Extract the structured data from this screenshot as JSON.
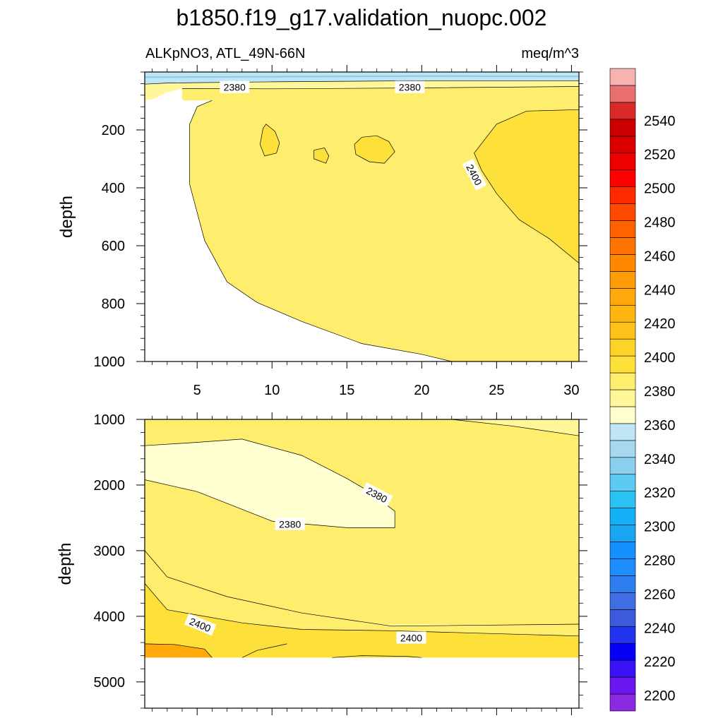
{
  "title": "b1850.f19_g17.validation_nuopc.002",
  "subtitle_left": "ALKpNO3, ATL_49N-66N",
  "subtitle_right": "meq/m^3",
  "colors": {
    "lev2370": "#ffffd0",
    "lev2380": "#fff79a",
    "lev2390": "#ffee6e",
    "lev2400": "#fde03a",
    "lev2420": "#ffa90c",
    "ocean_fill": "#bfe6f5",
    "ocean_fill_light": "#a9dcf0",
    "line": "#000000"
  },
  "chart_data": [
    {
      "type": "contour",
      "name": "upper-panel",
      "ylabel": "depth",
      "xlim": [
        1.5,
        30.5
      ],
      "ylim": [
        1000,
        0
      ],
      "x_ticks": [
        5,
        10,
        15,
        20,
        25,
        30
      ],
      "y_ticks": [
        200,
        400,
        600,
        800,
        1000
      ],
      "contour_labels": [
        {
          "text": "2380",
          "x": 7.5,
          "y": 53,
          "rotate": 0
        },
        {
          "text": "2380",
          "x": 19.2,
          "y": 53,
          "rotate": 0
        },
        {
          "text": "2400",
          "x": 23.5,
          "y": 355,
          "rotate": 62
        }
      ],
      "regions": [
        {
          "level": "ocean_fill",
          "points": [
            [
              1.5,
              0
            ],
            [
              30.5,
              0
            ],
            [
              30.5,
              30
            ],
            [
              20,
              30
            ],
            [
              10,
              34
            ],
            [
              3,
              38
            ],
            [
              1.5,
              42
            ]
          ]
        },
        {
          "level": "lev2380",
          "points": [
            [
              1.5,
              42
            ],
            [
              3,
              38
            ],
            [
              10,
              34
            ],
            [
              20,
              30
            ],
            [
              30.5,
              30
            ],
            [
              30.5,
              50
            ],
            [
              20,
              55
            ],
            [
              10,
              58
            ],
            [
              4,
              57
            ],
            [
              3,
              70
            ],
            [
              2,
              95
            ],
            [
              1.5,
              98
            ]
          ]
        },
        {
          "level": "lev2390",
          "points": [
            [
              4,
              57
            ],
            [
              10,
              58
            ],
            [
              20,
              55
            ],
            [
              30.5,
              50
            ],
            [
              30.5,
              1000
            ],
            [
              22,
              1000
            ],
            [
              20,
              975
            ],
            [
              16,
              938
            ],
            [
              12,
              862
            ],
            [
              9,
              796
            ],
            [
              7,
              725
            ],
            [
              5.5,
              582
            ],
            [
              4.5,
              388
            ],
            [
              4.5,
              180
            ],
            [
              5,
              120
            ],
            [
              6,
              98
            ],
            [
              4.2,
              98
            ],
            [
              4,
              95
            ]
          ]
        },
        {
          "level": "lev2400",
          "points": [
            [
              30.5,
              130
            ],
            [
              27,
              135
            ],
            [
              25,
              180
            ],
            [
              23.5,
              280
            ],
            [
              24,
              340
            ],
            [
              25,
              420
            ],
            [
              26.5,
              510
            ],
            [
              28.5,
              575
            ],
            [
              30.5,
              660
            ]
          ]
        },
        {
          "level": "lev2400",
          "points": [
            [
              9.4,
              195
            ],
            [
              9.6,
              180
            ],
            [
              10.2,
              205
            ],
            [
              10.5,
              245
            ],
            [
              10.3,
              280
            ],
            [
              9.5,
              290
            ],
            [
              9.2,
              250
            ]
          ]
        },
        {
          "level": "lev2400",
          "points": [
            [
              12.8,
              270
            ],
            [
              13.5,
              262
            ],
            [
              13.8,
              290
            ],
            [
              13.6,
              315
            ],
            [
              12.8,
              300
            ]
          ]
        },
        {
          "level": "lev2400",
          "points": [
            [
              15.5,
              250
            ],
            [
              16,
              225
            ],
            [
              17,
              220
            ],
            [
              17.8,
              240
            ],
            [
              18.2,
              275
            ],
            [
              17.5,
              315
            ],
            [
              16.5,
              310
            ],
            [
              15.6,
              285
            ]
          ]
        }
      ],
      "lines": [
        [
          [
            1.5,
            42
          ],
          [
            3,
            38
          ],
          [
            10,
            34
          ],
          [
            20,
            30
          ],
          [
            30.5,
            30
          ]
        ],
        [
          [
            4,
            57
          ],
          [
            10,
            58
          ],
          [
            20,
            55
          ],
          [
            30.5,
            50
          ]
        ],
        [
          [
            6,
            98
          ],
          [
            5,
            120
          ],
          [
            4.5,
            180
          ],
          [
            4.5,
            388
          ],
          [
            5.5,
            582
          ],
          [
            7,
            725
          ],
          [
            9,
            796
          ],
          [
            12,
            862
          ],
          [
            16,
            938
          ],
          [
            20,
            975
          ],
          [
            22,
            1000
          ]
        ],
        [
          [
            30.5,
            130
          ],
          [
            27,
            135
          ],
          [
            25,
            180
          ],
          [
            23.5,
            280
          ],
          [
            24,
            340
          ],
          [
            25,
            420
          ],
          [
            26.5,
            510
          ],
          [
            28.5,
            575
          ],
          [
            30.5,
            660
          ]
        ],
        [
          [
            9.4,
            195
          ],
          [
            9.6,
            180
          ],
          [
            10.2,
            205
          ],
          [
            10.5,
            245
          ],
          [
            10.3,
            280
          ],
          [
            9.5,
            290
          ],
          [
            9.2,
            250
          ],
          [
            9.4,
            195
          ]
        ],
        [
          [
            12.8,
            270
          ],
          [
            13.5,
            262
          ],
          [
            13.8,
            290
          ],
          [
            13.6,
            315
          ],
          [
            12.8,
            300
          ],
          [
            12.8,
            270
          ]
        ],
        [
          [
            15.5,
            250
          ],
          [
            16,
            225
          ],
          [
            17,
            220
          ],
          [
            17.8,
            240
          ],
          [
            18.2,
            275
          ],
          [
            17.5,
            315
          ],
          [
            16.5,
            310
          ],
          [
            15.6,
            285
          ],
          [
            15.5,
            250
          ]
        ]
      ]
    },
    {
      "type": "contour",
      "name": "lower-panel",
      "ylabel": "depth",
      "xlim": [
        1.5,
        30.5
      ],
      "ylim": [
        5400,
        1000
      ],
      "x_ticks": [
        5,
        10,
        15,
        20,
        25,
        30
      ],
      "y_ticks": [
        1000,
        2000,
        3000,
        4000,
        5000
      ],
      "data_floor": 4630,
      "contour_labels": [
        {
          "text": "2380",
          "x": 17,
          "y": 2150,
          "rotate": 28
        },
        {
          "text": "2380",
          "x": 11.2,
          "y": 2600,
          "rotate": 0
        },
        {
          "text": "2400",
          "x": 5.2,
          "y": 4130,
          "rotate": 22
        },
        {
          "text": "2400",
          "x": 19.3,
          "y": 4330,
          "rotate": 0
        }
      ],
      "regions": [
        {
          "level": "lev2390",
          "points": [
            [
              1.5,
              1000
            ],
            [
              30.5,
              1000
            ],
            [
              30.5,
              4630
            ],
            [
              1.5,
              4630
            ]
          ]
        },
        {
          "level": "lev2380",
          "points": [
            [
              1.5,
              1400
            ],
            [
              5,
              1350
            ],
            [
              8,
              1300
            ],
            [
              12,
              1550
            ],
            [
              15,
              1900
            ],
            [
              16.5,
              2100
            ],
            [
              18.2,
              2400
            ],
            [
              18.2,
              2650
            ],
            [
              15,
              2650
            ],
            [
              10,
              2550
            ],
            [
              5,
              2100
            ],
            [
              1.5,
              1920
            ],
            [
              1.5,
              3000
            ],
            [
              3,
              3400
            ],
            [
              7,
              3700
            ],
            [
              12,
              3950
            ],
            [
              18,
              4150
            ],
            [
              30.5,
              4120
            ],
            [
              30.5,
              1000
            ],
            [
              22,
              1000
            ],
            [
              26,
              1100
            ],
            [
              30.5,
              1250
            ],
            [
              30.5,
              4120
            ],
            [
              1.5,
              4120
            ]
          ]
        },
        {
          "level": "lev2370",
          "points": [
            [
              1.5,
              1920
            ],
            [
              1.5,
              1400
            ],
            [
              5,
              1350
            ],
            [
              8,
              1300
            ],
            [
              12,
              1550
            ],
            [
              15,
              1900
            ],
            [
              16.5,
              2100
            ],
            [
              18.2,
              2400
            ],
            [
              18.2,
              2650
            ],
            [
              15,
              2650
            ],
            [
              10,
              2550
            ],
            [
              5,
              2100
            ]
          ]
        },
        {
          "level": "lev2390",
          "points": [
            [
              1.5,
              3000
            ],
            [
              3,
              3400
            ],
            [
              7,
              3700
            ],
            [
              12,
              3950
            ],
            [
              18,
              4150
            ],
            [
              30.5,
              4120
            ],
            [
              30.5,
              4630
            ],
            [
              1.5,
              4630
            ]
          ]
        },
        {
          "level": "lev2400",
          "points": [
            [
              1.5,
              3500
            ],
            [
              3,
              3900
            ],
            [
              8,
              4100
            ],
            [
              12,
              4200
            ],
            [
              18,
              4220
            ],
            [
              30.5,
              4300
            ],
            [
              30.5,
              4630
            ],
            [
              1.5,
              4630
            ]
          ]
        },
        {
          "level": "lev2420",
          "points": [
            [
              1.5,
              4420
            ],
            [
              3.5,
              4430
            ],
            [
              5.5,
              4500
            ],
            [
              6,
              4630
            ],
            [
              1.5,
              4630
            ]
          ]
        },
        {
          "level": "lev2400",
          "points": [
            [
              14,
              4630
            ],
            [
              16,
              4600
            ],
            [
              19,
              4610
            ],
            [
              20,
              4630
            ]
          ]
        }
      ],
      "lines": [
        [
          [
            1.5,
            1400
          ],
          [
            5,
            1350
          ],
          [
            8,
            1300
          ],
          [
            12,
            1550
          ],
          [
            15,
            1900
          ],
          [
            16.5,
            2100
          ],
          [
            18.2,
            2400
          ],
          [
            18.2,
            2650
          ],
          [
            15,
            2650
          ],
          [
            10,
            2550
          ],
          [
            5,
            2100
          ],
          [
            1.5,
            1920
          ]
        ],
        [
          [
            22,
            1000
          ],
          [
            26,
            1100
          ],
          [
            30.5,
            1250
          ]
        ],
        [
          [
            1.5,
            3000
          ],
          [
            3,
            3400
          ],
          [
            7,
            3700
          ],
          [
            12,
            3950
          ],
          [
            18,
            4150
          ],
          [
            30.5,
            4120
          ]
        ],
        [
          [
            1.5,
            3500
          ],
          [
            3,
            3900
          ],
          [
            8,
            4100
          ],
          [
            12,
            4200
          ],
          [
            18,
            4220
          ],
          [
            30.5,
            4300
          ]
        ],
        [
          [
            1.5,
            4420
          ],
          [
            3.5,
            4430
          ],
          [
            5.5,
            4500
          ],
          [
            6,
            4630
          ]
        ],
        [
          [
            8,
            4630
          ],
          [
            9,
            4520
          ],
          [
            11,
            4420
          ]
        ],
        [
          [
            14,
            4630
          ],
          [
            16,
            4600
          ],
          [
            19,
            4610
          ],
          [
            20,
            4630
          ]
        ]
      ]
    }
  ],
  "colorbar": {
    "labels": [
      "2200",
      "2220",
      "2240",
      "2260",
      "2280",
      "2300",
      "2320",
      "2340",
      "2360",
      "2380",
      "2400",
      "2420",
      "2440",
      "2460",
      "2480",
      "2500",
      "2520",
      "2540"
    ],
    "colors": [
      "#8a2be2",
      "#6a16f0",
      "#3a13f5",
      "#0600f5",
      "#2233ee",
      "#3c5ad9",
      "#3e6ee2",
      "#2e7eef",
      "#1e8eff",
      "#1590ff",
      "#18a6f2",
      "#14b0f5",
      "#2ac2f2",
      "#5ccaf2",
      "#8bcfee",
      "#a6d8f0",
      "#bfe6f5",
      "#ffffd0",
      "#fff79a",
      "#ffee6e",
      "#fde03a",
      "#fdd329",
      "#fec21a",
      "#ffb510",
      "#ffa90c",
      "#ff9c08",
      "#ff8800",
      "#ff7400",
      "#ff6200",
      "#ff4a00",
      "#ff2a00",
      "#ff0000",
      "#ec0000",
      "#d90000",
      "#cc0000",
      "#d92a2a",
      "#ea7070",
      "#f7b2b2"
    ]
  }
}
